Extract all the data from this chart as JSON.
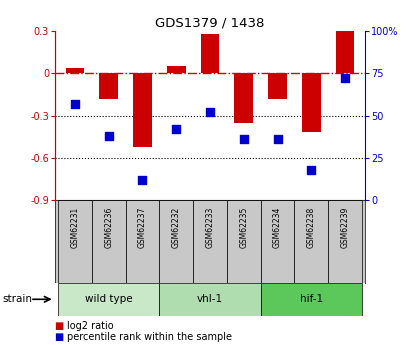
{
  "title": "GDS1379 / 1438",
  "samples": [
    "GSM62231",
    "GSM62236",
    "GSM62237",
    "GSM62232",
    "GSM62233",
    "GSM62235",
    "GSM62234",
    "GSM62238",
    "GSM62239"
  ],
  "log2_ratio": [
    0.04,
    -0.18,
    -0.52,
    0.05,
    0.28,
    -0.35,
    -0.18,
    -0.42,
    0.3
  ],
  "percentile_rank": [
    57,
    38,
    12,
    42,
    52,
    36,
    36,
    18,
    72
  ],
  "ylim_left": [
    -0.9,
    0.3
  ],
  "ylim_right": [
    0,
    100
  ],
  "yticks_left": [
    0.3,
    0,
    -0.3,
    -0.6,
    -0.9
  ],
  "yticks_right": [
    100,
    75,
    50,
    25,
    0
  ],
  "groups": [
    {
      "label": "wild type",
      "indices": [
        0,
        1,
        2
      ],
      "color": "#c8e8c8"
    },
    {
      "label": "vhl-1",
      "indices": [
        3,
        4,
        5
      ],
      "color": "#b0ddb0"
    },
    {
      "label": "hif-1",
      "indices": [
        6,
        7,
        8
      ],
      "color": "#5cc85c"
    }
  ],
  "bar_color": "#cc0000",
  "dot_color": "#0000cc",
  "zero_line_color": "#cc0000",
  "dotted_line_color": "#000000",
  "sample_box_color": "#c8c8c8",
  "bg_color": "#ffffff",
  "plot_bg": "#ffffff",
  "strain_label": "strain",
  "legend_bar": "log2 ratio",
  "legend_dot": "percentile rank within the sample"
}
